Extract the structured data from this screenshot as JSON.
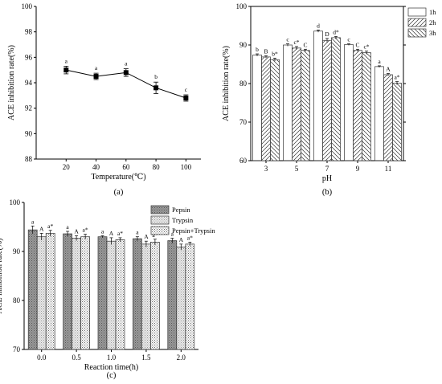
{
  "chart_data": [
    {
      "id": "a",
      "type": "line",
      "panel_label": "(a)",
      "xlabel": "Temperature(℃)",
      "ylabel": "ACE inhibition rate(%)",
      "x": [
        20,
        40,
        60,
        80,
        100
      ],
      "xticks": [
        20,
        40,
        60,
        80,
        100
      ],
      "xlim": [
        0,
        110
      ],
      "ylim": [
        88,
        100
      ],
      "yticks": [
        88,
        90,
        92,
        94,
        96,
        98,
        100
      ],
      "grid": false,
      "series": [
        {
          "values": [
            95.0,
            94.5,
            94.8,
            93.6,
            92.8
          ],
          "errors": [
            0.3,
            0.25,
            0.3,
            0.45,
            0.25
          ],
          "labels": [
            "a",
            "a",
            "a",
            "b",
            "c"
          ],
          "color": "#000000",
          "marker": "square"
        }
      ]
    },
    {
      "id": "b",
      "type": "bar",
      "panel_label": "(b)",
      "xlabel": "pH",
      "ylabel": "ACE inhibition rate(%)",
      "categories": [
        "3",
        "5",
        "7",
        "9",
        "11"
      ],
      "ylim": [
        60,
        100
      ],
      "yticks": [
        60,
        70,
        80,
        90,
        100
      ],
      "grid": false,
      "legend_position": "top-right",
      "series": [
        {
          "name": "1h",
          "pattern": "blank",
          "values": [
            87.4,
            90.0,
            93.6,
            90.1,
            84.4
          ],
          "errors": [
            0.3,
            0.3,
            0.3,
            0.2,
            0.2
          ],
          "labels": [
            "b",
            "c",
            "d",
            "c",
            "a"
          ]
        },
        {
          "name": "2h",
          "pattern": "hatch-right",
          "values": [
            86.9,
            89.2,
            91.2,
            88.6,
            82.3
          ],
          "errors": [
            0.3,
            0.4,
            0.5,
            0.3,
            0.3
          ],
          "labels": [
            "B",
            "c*",
            "D",
            "C",
            "A"
          ]
        },
        {
          "name": "3h",
          "pattern": "hatch-left",
          "values": [
            86.2,
            88.6,
            91.9,
            88.0,
            80.1
          ],
          "errors": [
            0.4,
            0.3,
            0.3,
            0.4,
            0.4
          ],
          "labels": [
            "b*",
            "C",
            "d*",
            "c*",
            "a*"
          ]
        }
      ]
    },
    {
      "id": "c",
      "type": "bar",
      "panel_label": "(c)",
      "xlabel": "Reaction time(h)",
      "ylabel": "ACE inhibition rate(%)",
      "categories": [
        "0.0",
        "0.5",
        "1.0",
        "1.5",
        "2.0"
      ],
      "ylim": [
        70,
        100
      ],
      "yticks": [
        70,
        80,
        90,
        100
      ],
      "grid": false,
      "legend_position": "top-right",
      "series": [
        {
          "name": "Pepsin",
          "pattern": "dark-dots",
          "values": [
            94.4,
            93.6,
            93.0,
            92.6,
            92.2
          ],
          "errors": [
            0.8,
            0.5,
            0.2,
            0.4,
            0.5
          ],
          "labels": [
            "a",
            "a",
            "a",
            "a",
            "a"
          ]
        },
        {
          "name": "Trypsin",
          "pattern": "light-dots",
          "values": [
            93.0,
            92.7,
            92.1,
            91.5,
            90.9
          ],
          "errors": [
            0.7,
            0.5,
            0.7,
            0.6,
            0.6
          ],
          "labels": [
            "A",
            "A",
            "A",
            "A",
            "A"
          ]
        },
        {
          "name": "Pepsin+Trypsin",
          "pattern": "grid",
          "values": [
            93.7,
            93.0,
            92.4,
            91.9,
            91.5
          ],
          "errors": [
            0.6,
            0.5,
            0.4,
            0.6,
            0.4
          ],
          "labels": [
            "a*",
            "a*",
            "a*",
            "a*",
            "a*"
          ]
        }
      ]
    }
  ]
}
